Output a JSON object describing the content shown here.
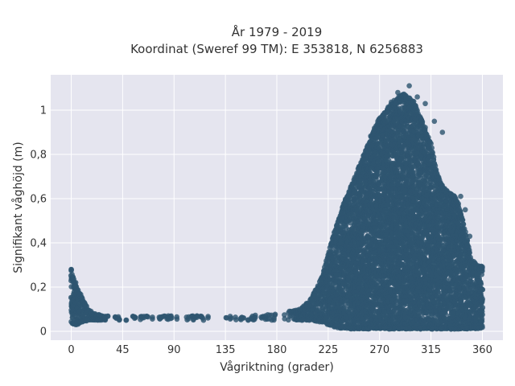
{
  "chart_data": {
    "type": "scatter",
    "title": "År 1979 - 2019",
    "subtitle": "Koordinat (Sweref 99 TM): E 353818, N 6256883",
    "xlabel": "Vågriktning (grader)",
    "ylabel": "Signifikant våghöjd (m)",
    "xlim": [
      -18,
      378
    ],
    "ylim": [
      -0.04,
      1.16
    ],
    "xticks": [
      0,
      45,
      90,
      135,
      180,
      225,
      270,
      315,
      360
    ],
    "xtick_labels": [
      "0",
      "45",
      "90",
      "135",
      "180",
      "225",
      "270",
      "315",
      "360"
    ],
    "yticks": [
      0,
      0.2,
      0.4,
      0.6,
      0.8,
      1
    ],
    "ytick_labels": [
      "0",
      "0,2",
      "0,4",
      "0,6",
      "0,8",
      "1"
    ],
    "grid": true,
    "colors": {
      "marker": "#2e5570",
      "plot_bg": "#e5e5ef",
      "grid": "#ffffff"
    },
    "envelope": {
      "direction": [
        0,
        2,
        5,
        10,
        15,
        20,
        30,
        45,
        60,
        90,
        120,
        150,
        180,
        200,
        210,
        220,
        225,
        230,
        240,
        250,
        260,
        265,
        270,
        275,
        280,
        285,
        290,
        295,
        300,
        305,
        310,
        315,
        320,
        325,
        330,
        335,
        340,
        345,
        350,
        355,
        360
      ],
      "max_height": [
        0.28,
        0.25,
        0.2,
        0.15,
        0.1,
        0.08,
        0.07,
        0.07,
        0.07,
        0.07,
        0.07,
        0.07,
        0.08,
        0.1,
        0.15,
        0.25,
        0.35,
        0.45,
        0.6,
        0.72,
        0.85,
        0.92,
        0.97,
        1.0,
        1.04,
        1.05,
        1.08,
        1.06,
        1.04,
        0.98,
        0.92,
        0.85,
        0.72,
        0.66,
        0.63,
        0.62,
        0.57,
        0.45,
        0.34,
        0.3,
        0.3
      ],
      "min_height": [
        0.04,
        0.03,
        0.03,
        0.04,
        0.05,
        0.05,
        0.05,
        0.05,
        0.05,
        0.05,
        0.05,
        0.05,
        0.05,
        0.05,
        0.05,
        0.04,
        0.03,
        0.02,
        0.01,
        0.01,
        0.01,
        0.01,
        0.01,
        0.01,
        0.01,
        0.01,
        0.01,
        0.01,
        0.01,
        0.01,
        0.01,
        0.01,
        0.01,
        0.01,
        0.01,
        0.01,
        0.01,
        0.01,
        0.01,
        0.01,
        0.01
      ]
    },
    "outliers": [
      {
        "x": 296,
        "y": 1.11
      },
      {
        "x": 286,
        "y": 1.08
      },
      {
        "x": 303,
        "y": 1.06
      },
      {
        "x": 310,
        "y": 1.03
      },
      {
        "x": 318,
        "y": 0.95
      },
      {
        "x": 325,
        "y": 0.9
      },
      {
        "x": 341,
        "y": 0.61
      },
      {
        "x": 345,
        "y": 0.55
      },
      {
        "x": 349,
        "y": 0.43
      },
      {
        "x": 0,
        "y": 0.28
      },
      {
        "x": 62,
        "y": 0.06
      },
      {
        "x": 85,
        "y": 0.07
      },
      {
        "x": 110,
        "y": 0.07
      },
      {
        "x": 140,
        "y": 0.06
      },
      {
        "x": 170,
        "y": 0.07
      },
      {
        "x": 200,
        "y": 0.1
      }
    ]
  }
}
